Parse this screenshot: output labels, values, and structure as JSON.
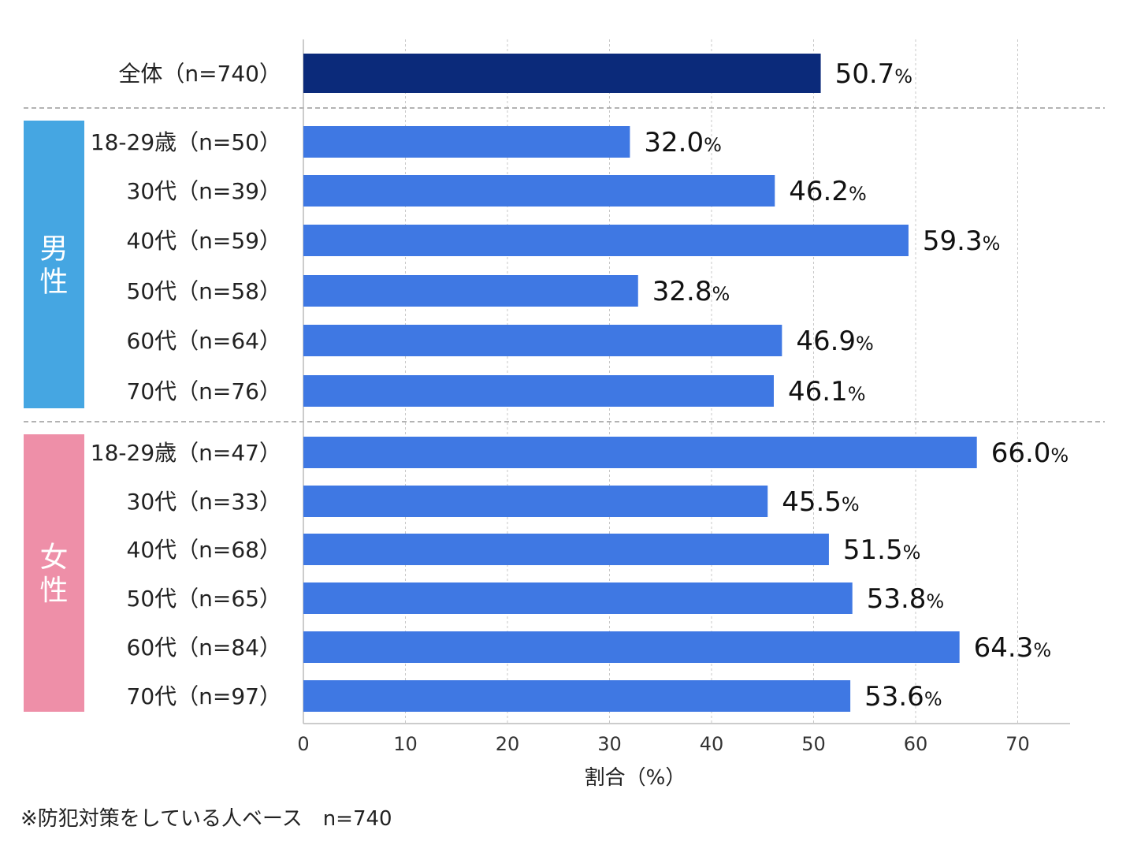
{
  "chart_data": {
    "type": "bar",
    "orientation": "horizontal",
    "xlabel": "割合（%）",
    "xlim": [
      0,
      75
    ],
    "xticks": [
      0,
      10,
      20,
      30,
      40,
      50,
      60,
      70
    ],
    "grid": true,
    "value_suffix": "%",
    "groups": [
      {
        "label": "",
        "color": "",
        "categories": [
          "全体（n=740）"
        ],
        "values": [
          50.7
        ],
        "bar_color": "#0b2a7a"
      },
      {
        "label": "男性",
        "color": "#45a6e2",
        "categories": [
          "18-29歳（n=50）",
          "30代（n=39）",
          "40代（n=59）",
          "50代（n=58）",
          "60代（n=64）",
          "70代（n=76）"
        ],
        "values": [
          32.0,
          46.2,
          59.3,
          32.8,
          46.9,
          46.1
        ],
        "bar_color": "#3f78e3"
      },
      {
        "label": "女性",
        "color": "#ee8fa8",
        "categories": [
          "18-29歳（n=47）",
          "30代（n=33）",
          "40代（n=68）",
          "50代（n=65）",
          "60代（n=84）",
          "70代（n=97）"
        ],
        "values": [
          66.0,
          45.5,
          51.5,
          53.8,
          64.3,
          53.6
        ],
        "bar_color": "#3f78e3"
      }
    ]
  },
  "footnote": "※防犯対策をしている人ベース　n=740"
}
